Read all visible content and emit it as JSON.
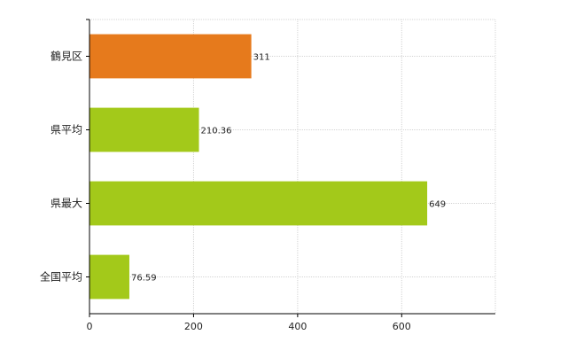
{
  "chart_data": {
    "type": "bar",
    "orientation": "horizontal",
    "categories": [
      "鶴見区",
      "県平均",
      "県最大",
      "全国平均"
    ],
    "values": [
      311,
      210.36,
      649,
      76.59
    ],
    "data_labels": [
      "311",
      "210.36",
      "649",
      "76.59"
    ],
    "bar_colors": [
      "#e67a1c",
      "#a3c91a",
      "#a3c91a",
      "#a3c91a"
    ],
    "xlim": [
      0,
      780
    ],
    "xticks": [
      0,
      200,
      400,
      600
    ],
    "title": "",
    "xlabel": "",
    "ylabel": "",
    "grid": true,
    "legend": "none"
  }
}
